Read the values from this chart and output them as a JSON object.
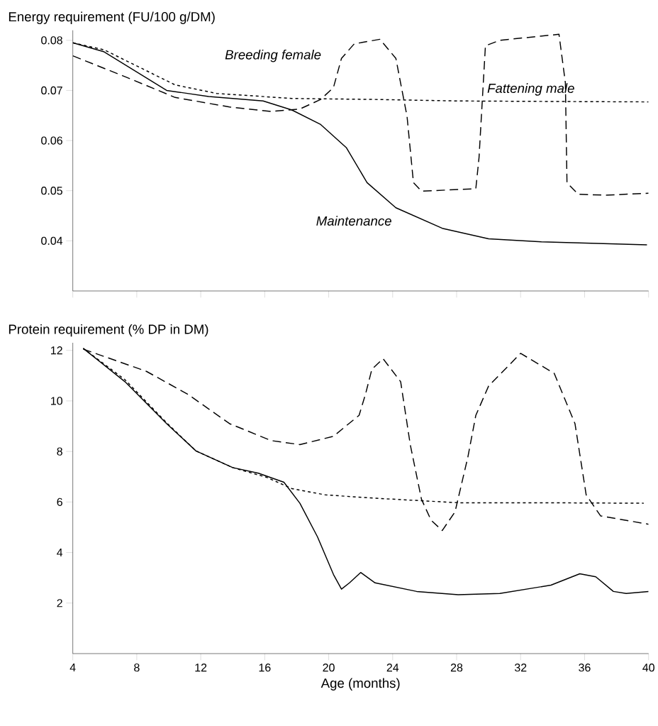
{
  "chart_data": [
    {
      "type": "line",
      "ylabel": "Energy requirement (FU/100 g/DM)",
      "xlim": [
        4,
        40
      ],
      "xticks": [
        4,
        8,
        12,
        16,
        20,
        24,
        28,
        32,
        36,
        40
      ],
      "ylim": [
        0.03,
        0.082
      ],
      "yticks": [
        0.04,
        0.05,
        0.06,
        0.07,
        0.08
      ],
      "tick_labels": "y",
      "series": [
        {
          "name": "Maintenance",
          "color": "#000000",
          "line_style": "solid",
          "x": [
            4.0,
            5.96,
            9.87,
            12.5,
            15.9,
            17.7,
            19.5,
            21.1,
            22.4,
            24.2,
            27.1,
            30.0,
            33.3,
            39.9
          ],
          "values": [
            0.0795,
            0.0777,
            0.07,
            0.0688,
            0.0679,
            0.0661,
            0.0632,
            0.0586,
            0.0516,
            0.0466,
            0.0425,
            0.0404,
            0.0398,
            0.0392
          ]
        },
        {
          "name": "Fattening male",
          "color": "#000000",
          "line_style": "dotted",
          "x": [
            4.0,
            5.96,
            10.4,
            13.0,
            17.7,
            22.9,
            28.1,
            40.0
          ],
          "values": [
            0.0795,
            0.0781,
            0.0711,
            0.0694,
            0.0684,
            0.0682,
            0.0679,
            0.0677
          ]
        },
        {
          "name": "Breeding female",
          "color": "#000000",
          "line_style": "dashed",
          "x": [
            4.0,
            7.3,
            10.4,
            13.8,
            16.4,
            18.2,
            19.5,
            20.3,
            20.8,
            21.6,
            23.2,
            24.2,
            24.9,
            25.3,
            25.8,
            29.2,
            29.4,
            29.8,
            30.7,
            34.4,
            34.8,
            34.9,
            35.6,
            37.3,
            40.0
          ],
          "values": [
            0.0769,
            0.0727,
            0.0686,
            0.0667,
            0.0658,
            0.0663,
            0.0682,
            0.0706,
            0.0764,
            0.0793,
            0.0802,
            0.0764,
            0.0648,
            0.0516,
            0.0499,
            0.0504,
            0.0566,
            0.0789,
            0.08,
            0.0812,
            0.0715,
            0.0516,
            0.0493,
            0.0491,
            0.0495
          ]
        }
      ]
    },
    {
      "type": "line",
      "ylabel": "Protein requirement (% DP in DM)",
      "xlabel": "Age (months)",
      "xlim": [
        4,
        40
      ],
      "xticks": [
        4,
        8,
        12,
        16,
        20,
        24,
        28,
        32,
        36,
        40
      ],
      "ylim": [
        0,
        12.3
      ],
      "yticks": [
        2,
        4,
        6,
        8,
        10,
        12
      ],
      "series": [
        {
          "color": "#000000",
          "line_style": "solid",
          "x": [
            4.65,
            7.26,
            9.87,
            11.7,
            14.0,
            15.6,
            17.2,
            18.2,
            19.3,
            20.3,
            20.8,
            21.3,
            22.0,
            22.9,
            25.5,
            28.1,
            30.7,
            33.9,
            35.7,
            36.7,
            37.8,
            38.6,
            40.0
          ],
          "values": [
            12.08,
            10.76,
            9.1,
            8.02,
            7.36,
            7.14,
            6.78,
            5.95,
            4.62,
            3.13,
            2.55,
            2.8,
            3.21,
            2.8,
            2.46,
            2.33,
            2.38,
            2.71,
            3.16,
            3.04,
            2.46,
            2.38,
            2.46
          ]
        },
        {
          "color": "#000000",
          "line_style": "dotted",
          "x": [
            4.65,
            7.26,
            9.87,
            11.7,
            14.0,
            16.1,
            17.7,
            19.8,
            22.9,
            28.1,
            33.3,
            39.7
          ],
          "values": [
            12.08,
            10.84,
            9.13,
            8.02,
            7.36,
            6.98,
            6.53,
            6.28,
            6.15,
            5.97,
            5.97,
            5.95
          ]
        },
        {
          "color": "#000000",
          "line_style": "dashed",
          "x": [
            4.65,
            8.6,
            11.2,
            13.8,
            16.4,
            18.2,
            20.3,
            21.9,
            22.3,
            22.7,
            23.4,
            24.5,
            25.1,
            25.8,
            26.4,
            27.1,
            27.9,
            28.7,
            29.2,
            30.0,
            32.0,
            34.1,
            35.4,
            36.1,
            37.0,
            40.0
          ],
          "values": [
            12.05,
            11.17,
            10.26,
            9.1,
            8.43,
            8.27,
            8.6,
            9.43,
            10.26,
            11.25,
            11.67,
            10.76,
            8.27,
            6.11,
            5.28,
            4.87,
            5.61,
            7.77,
            9.43,
            10.59,
            11.88,
            11.09,
            9.1,
            6.28,
            5.45,
            5.12
          ]
        }
      ]
    }
  ]
}
